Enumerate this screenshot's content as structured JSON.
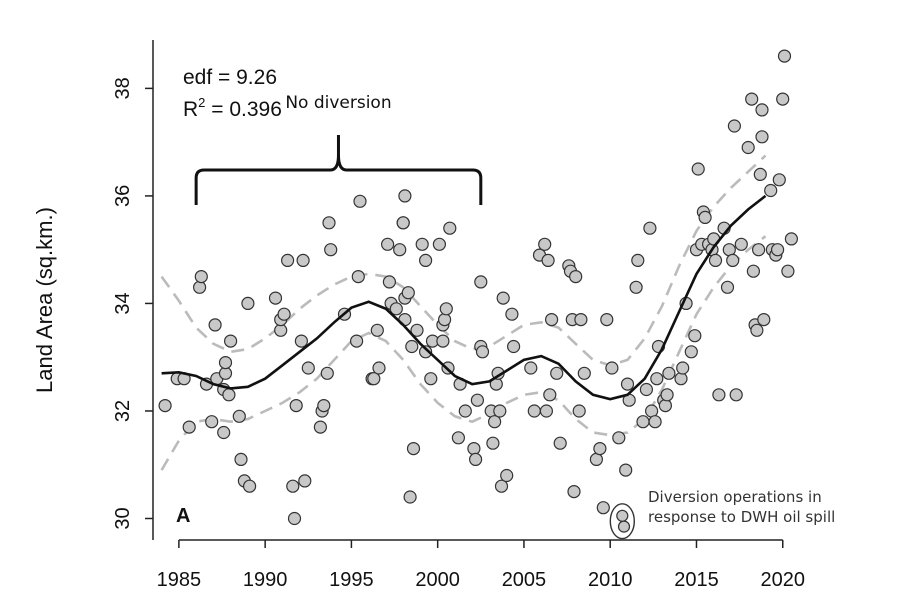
{
  "chart_data": {
    "type": "scatter",
    "title": "",
    "xlabel": "",
    "ylabel": "Land Area (sq.km.)",
    "xlim": [
      1983.5,
      2021
    ],
    "ylim": [
      29.6,
      38.9
    ],
    "xticks": [
      1985,
      1990,
      1995,
      2000,
      2005,
      2010,
      2015,
      2020
    ],
    "yticks": [
      30,
      32,
      34,
      36,
      38
    ],
    "grid": false,
    "panel_label": "A",
    "stats": {
      "edf_text": "edf = 9.26",
      "r2_label": "R",
      "r2_sup": "2",
      "r2_value": " = 0.396"
    },
    "annotations": {
      "no_diversion": {
        "text": "No diversion",
        "x_start": 1986,
        "x_end": 2002.5
      },
      "diversion_ops": {
        "line1": "Diversion operations in",
        "line2": "response to DWH oil spill",
        "x": 2010.7,
        "y_range": [
          29.85,
          30.05
        ]
      }
    },
    "colors": {
      "points_fill": "#c8c8c8",
      "points_stroke": "#333333",
      "fit": "#111111",
      "ci": "#bbbbbb"
    },
    "points": [
      [
        1984.2,
        32.1
      ],
      [
        1984.9,
        32.6
      ],
      [
        1985.3,
        32.6
      ],
      [
        1985.6,
        31.7
      ],
      [
        1986.2,
        34.3
      ],
      [
        1986.3,
        34.5
      ],
      [
        1986.6,
        32.5
      ],
      [
        1986.9,
        31.8
      ],
      [
        1987.1,
        33.6
      ],
      [
        1987.2,
        32.6
      ],
      [
        1987.6,
        31.6
      ],
      [
        1987.6,
        32.4
      ],
      [
        1987.7,
        32.7
      ],
      [
        1987.7,
        32.9
      ],
      [
        1987.9,
        32.3
      ],
      [
        1988.0,
        33.3
      ],
      [
        1988.5,
        31.9
      ],
      [
        1988.6,
        31.1
      ],
      [
        1988.8,
        30.7
      ],
      [
        1989.0,
        34.0
      ],
      [
        1989.1,
        30.6
      ],
      [
        1990.6,
        34.1
      ],
      [
        1990.9,
        33.5
      ],
      [
        1990.9,
        33.7
      ],
      [
        1991.1,
        33.8
      ],
      [
        1991.3,
        34.8
      ],
      [
        1991.6,
        30.6
      ],
      [
        1991.7,
        30.0
      ],
      [
        1991.8,
        32.1
      ],
      [
        1992.1,
        33.3
      ],
      [
        1992.2,
        34.8
      ],
      [
        1992.3,
        30.7
      ],
      [
        1992.5,
        32.8
      ],
      [
        1993.2,
        31.7
      ],
      [
        1993.3,
        32.0
      ],
      [
        1993.4,
        32.1
      ],
      [
        1993.6,
        32.7
      ],
      [
        1993.7,
        35.5
      ],
      [
        1993.8,
        35.0
      ],
      [
        1994.6,
        33.8
      ],
      [
        1995.3,
        33.3
      ],
      [
        1995.4,
        34.5
      ],
      [
        1995.5,
        35.9
      ],
      [
        1996.2,
        32.6
      ],
      [
        1996.3,
        32.6
      ],
      [
        1996.5,
        33.5
      ],
      [
        1996.6,
        32.8
      ],
      [
        1997.1,
        35.1
      ],
      [
        1997.2,
        34.4
      ],
      [
        1997.3,
        34.0
      ],
      [
        1997.6,
        33.9
      ],
      [
        1997.8,
        35.0
      ],
      [
        1998.0,
        35.5
      ],
      [
        1998.0,
        35.5
      ],
      [
        1998.1,
        33.7
      ],
      [
        1998.1,
        34.1
      ],
      [
        1998.1,
        36.0
      ],
      [
        1998.3,
        34.2
      ],
      [
        1998.4,
        30.4
      ],
      [
        1998.5,
        33.2
      ],
      [
        1998.6,
        31.3
      ],
      [
        1998.8,
        33.5
      ],
      [
        1999.1,
        35.1
      ],
      [
        1999.3,
        34.8
      ],
      [
        1999.3,
        33.1
      ],
      [
        1999.6,
        32.6
      ],
      [
        1999.7,
        33.3
      ],
      [
        2000.1,
        35.1
      ],
      [
        2000.3,
        33.3
      ],
      [
        2000.3,
        33.6
      ],
      [
        2000.4,
        33.7
      ],
      [
        2000.5,
        33.9
      ],
      [
        2000.6,
        32.8
      ],
      [
        2000.7,
        35.4
      ],
      [
        2001.2,
        31.5
      ],
      [
        2001.3,
        32.5
      ],
      [
        2001.6,
        32.0
      ],
      [
        2002.1,
        31.3
      ],
      [
        2002.2,
        31.1
      ],
      [
        2002.3,
        32.2
      ],
      [
        2002.5,
        34.4
      ],
      [
        2002.5,
        33.2
      ],
      [
        2002.6,
        33.1
      ],
      [
        2003.1,
        32.0
      ],
      [
        2003.2,
        31.4
      ],
      [
        2003.3,
        31.8
      ],
      [
        2003.4,
        32.5
      ],
      [
        2003.5,
        32.7
      ],
      [
        2003.6,
        32.0
      ],
      [
        2003.7,
        30.6
      ],
      [
        2003.8,
        34.1
      ],
      [
        2004.0,
        30.8
      ],
      [
        2004.3,
        33.8
      ],
      [
        2004.4,
        33.2
      ],
      [
        2005.4,
        32.8
      ],
      [
        2005.6,
        32.0
      ],
      [
        2005.9,
        34.9
      ],
      [
        2006.2,
        35.1
      ],
      [
        2006.3,
        32.0
      ],
      [
        2006.4,
        34.8
      ],
      [
        2006.5,
        32.3
      ],
      [
        2006.6,
        33.7
      ],
      [
        2006.9,
        32.7
      ],
      [
        2007.1,
        31.4
      ],
      [
        2007.6,
        34.7
      ],
      [
        2007.7,
        34.6
      ],
      [
        2007.8,
        33.7
      ],
      [
        2007.9,
        30.5
      ],
      [
        2008.0,
        34.5
      ],
      [
        2008.2,
        32.0
      ],
      [
        2008.3,
        33.7
      ],
      [
        2008.5,
        32.7
      ],
      [
        2009.2,
        31.1
      ],
      [
        2009.4,
        31.3
      ],
      [
        2009.6,
        30.2
      ],
      [
        2009.8,
        33.7
      ],
      [
        2010.1,
        32.8
      ],
      [
        2010.5,
        31.5
      ],
      [
        2010.9,
        30.9
      ],
      [
        2011.0,
        32.5
      ],
      [
        2011.1,
        32.2
      ],
      [
        2011.5,
        34.3
      ],
      [
        2011.6,
        34.8
      ],
      [
        2011.9,
        31.8
      ],
      [
        2012.1,
        32.4
      ],
      [
        2012.3,
        35.4
      ],
      [
        2012.4,
        32.0
      ],
      [
        2012.6,
        31.8
      ],
      [
        2012.7,
        32.6
      ],
      [
        2012.8,
        33.2
      ],
      [
        2013.1,
        32.2
      ],
      [
        2013.2,
        32.1
      ],
      [
        2013.3,
        32.3
      ],
      [
        2013.4,
        32.7
      ],
      [
        2014.1,
        32.6
      ],
      [
        2014.2,
        32.8
      ],
      [
        2014.4,
        34.0
      ],
      [
        2014.7,
        33.1
      ],
      [
        2014.9,
        33.4
      ],
      [
        2015.0,
        35.0
      ],
      [
        2015.1,
        36.5
      ],
      [
        2015.3,
        35.1
      ],
      [
        2015.4,
        35.7
      ],
      [
        2015.5,
        35.6
      ],
      [
        2015.7,
        35.1
      ],
      [
        2015.9,
        35.0
      ],
      [
        2016.0,
        35.2
      ],
      [
        2016.1,
        34.8
      ],
      [
        2016.3,
        32.3
      ],
      [
        2016.6,
        35.4
      ],
      [
        2016.8,
        34.3
      ],
      [
        2016.9,
        35.0
      ],
      [
        2017.1,
        34.8
      ],
      [
        2017.2,
        37.3
      ],
      [
        2017.3,
        32.3
      ],
      [
        2017.6,
        35.1
      ],
      [
        2018.0,
        36.9
      ],
      [
        2018.2,
        37.8
      ],
      [
        2018.3,
        34.6
      ],
      [
        2018.4,
        33.6
      ],
      [
        2018.5,
        33.5
      ],
      [
        2018.6,
        35.0
      ],
      [
        2018.7,
        36.4
      ],
      [
        2018.8,
        37.6
      ],
      [
        2018.8,
        37.1
      ],
      [
        2018.9,
        33.7
      ],
      [
        2019.3,
        36.1
      ],
      [
        2019.4,
        35.0
      ],
      [
        2019.6,
        34.9
      ],
      [
        2019.7,
        35.0
      ],
      [
        2019.8,
        36.3
      ],
      [
        2020.0,
        37.8
      ],
      [
        2020.1,
        38.6
      ],
      [
        2020.3,
        34.6
      ],
      [
        2020.5,
        35.2
      ]
    ],
    "highlighted_points": [
      [
        2010.7,
        30.05
      ],
      [
        2010.8,
        29.85
      ]
    ],
    "smooth_fit": [
      [
        1984,
        32.7
      ],
      [
        1985,
        32.72
      ],
      [
        1986,
        32.65
      ],
      [
        1987,
        32.5
      ],
      [
        1988,
        32.42
      ],
      [
        1989,
        32.45
      ],
      [
        1990,
        32.6
      ],
      [
        1991,
        32.85
      ],
      [
        1992,
        33.1
      ],
      [
        1993,
        33.35
      ],
      [
        1994,
        33.65
      ],
      [
        1995,
        33.92
      ],
      [
        1996,
        34.03
      ],
      [
        1997,
        33.9
      ],
      [
        1998,
        33.6
      ],
      [
        1999,
        33.25
      ],
      [
        2000,
        32.95
      ],
      [
        2001,
        32.65
      ],
      [
        2002,
        32.5
      ],
      [
        2003,
        32.55
      ],
      [
        2004,
        32.75
      ],
      [
        2005,
        32.95
      ],
      [
        2006,
        33.02
      ],
      [
        2007,
        32.88
      ],
      [
        2008,
        32.55
      ],
      [
        2009,
        32.3
      ],
      [
        2010,
        32.22
      ],
      [
        2011,
        32.3
      ],
      [
        2012,
        32.6
      ],
      [
        2013,
        33.15
      ],
      [
        2014,
        33.85
      ],
      [
        2015,
        34.55
      ],
      [
        2016,
        35.05
      ],
      [
        2017,
        35.45
      ],
      [
        2018,
        35.75
      ],
      [
        2019,
        36.0
      ]
    ],
    "ci_upper": [
      [
        1984,
        34.5
      ],
      [
        1985,
        34.05
      ],
      [
        1986,
        33.55
      ],
      [
        1987,
        33.25
      ],
      [
        1988,
        33.1
      ],
      [
        1989,
        33.15
      ],
      [
        1990,
        33.35
      ],
      [
        1991,
        33.6
      ],
      [
        1992,
        33.9
      ],
      [
        1993,
        34.15
      ],
      [
        1994,
        34.35
      ],
      [
        1995,
        34.5
      ],
      [
        1996,
        34.55
      ],
      [
        1997,
        34.5
      ],
      [
        1998,
        34.3
      ],
      [
        1999,
        33.95
      ],
      [
        2000,
        33.6
      ],
      [
        2001,
        33.3
      ],
      [
        2002,
        33.15
      ],
      [
        2003,
        33.2
      ],
      [
        2004,
        33.4
      ],
      [
        2005,
        33.6
      ],
      [
        2006,
        33.65
      ],
      [
        2007,
        33.55
      ],
      [
        2008,
        33.25
      ],
      [
        2009,
        32.95
      ],
      [
        2010,
        32.85
      ],
      [
        2011,
        32.95
      ],
      [
        2012,
        33.35
      ],
      [
        2013,
        33.95
      ],
      [
        2014,
        34.7
      ],
      [
        2015,
        35.35
      ],
      [
        2016,
        35.8
      ],
      [
        2017,
        36.15
      ],
      [
        2018,
        36.45
      ],
      [
        2019,
        36.75
      ]
    ],
    "ci_lower": [
      [
        1984,
        30.9
      ],
      [
        1985,
        31.45
      ],
      [
        1986,
        31.8
      ],
      [
        1987,
        31.85
      ],
      [
        1988,
        31.8
      ],
      [
        1989,
        31.85
      ],
      [
        1990,
        32.0
      ],
      [
        1991,
        32.15
      ],
      [
        1992,
        32.35
      ],
      [
        1993,
        32.6
      ],
      [
        1994,
        32.95
      ],
      [
        1995,
        33.3
      ],
      [
        1996,
        33.45
      ],
      [
        1997,
        33.3
      ],
      [
        1998,
        32.95
      ],
      [
        1999,
        32.5
      ],
      [
        2000,
        32.15
      ],
      [
        2001,
        31.9
      ],
      [
        2002,
        31.8
      ],
      [
        2003,
        31.95
      ],
      [
        2004,
        32.15
      ],
      [
        2005,
        32.3
      ],
      [
        2006,
        32.35
      ],
      [
        2007,
        32.2
      ],
      [
        2008,
        31.85
      ],
      [
        2009,
        31.6
      ],
      [
        2010,
        31.55
      ],
      [
        2011,
        31.6
      ],
      [
        2012,
        31.85
      ],
      [
        2013,
        32.4
      ],
      [
        2014,
        33.1
      ],
      [
        2015,
        33.8
      ],
      [
        2016,
        34.3
      ],
      [
        2017,
        34.7
      ],
      [
        2018,
        35.0
      ],
      [
        2019,
        35.25
      ]
    ]
  }
}
